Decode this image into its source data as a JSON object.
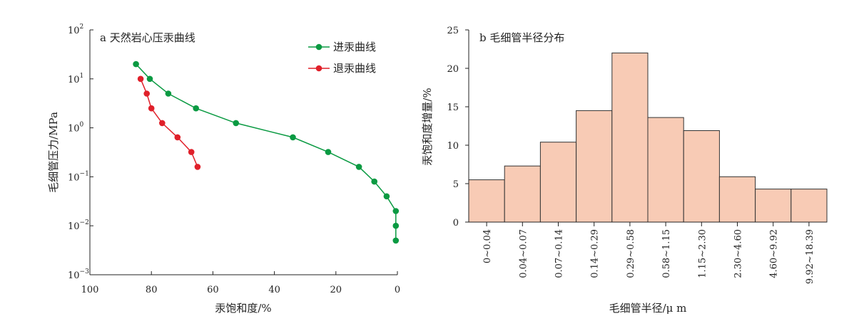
{
  "colors": {
    "intrusion": "#0a9a42",
    "withdrawal": "#e0202a",
    "bar_fill": "#f8cbb5",
    "bar_stroke": "#333333",
    "axis": "#222222"
  },
  "chart_data": [
    {
      "type": "line",
      "title": "a 天然岩心压汞曲线",
      "xlabel": "汞饱和度/%",
      "ylabel": "毛细管压力/MPa",
      "xlim": [
        100,
        0
      ],
      "x_reversed": true,
      "ylim": [
        0.001,
        100
      ],
      "y_scale": "log",
      "x_ticks": [
        100,
        80,
        60,
        40,
        20,
        0
      ],
      "y_ticks": [
        {
          "base": "10",
          "exp": "2",
          "value": 100
        },
        {
          "base": "10",
          "exp": "1",
          "value": 10
        },
        {
          "base": "10",
          "exp": "0",
          "value": 1
        },
        {
          "base": "10",
          "exp": "−1",
          "value": 0.1
        },
        {
          "base": "10",
          "exp": "−2",
          "value": 0.01
        },
        {
          "base": "10",
          "exp": "−3",
          "value": 0.001
        }
      ],
      "legend_position": "top-right",
      "series": [
        {
          "name": "进汞曲线",
          "color_key": "intrusion",
          "points": [
            [
              85,
              20
            ],
            [
              80.5,
              10
            ],
            [
              74.5,
              5
            ],
            [
              65.5,
              2.5
            ],
            [
              52.5,
              1.25
            ],
            [
              34,
              0.64
            ],
            [
              22.5,
              0.32
            ],
            [
              12.5,
              0.16
            ],
            [
              7.5,
              0.08
            ],
            [
              3.5,
              0.04
            ],
            [
              0.5,
              0.02
            ],
            [
              0.5,
              0.01
            ],
            [
              0.5,
              0.005
            ]
          ]
        },
        {
          "name": "退汞曲线",
          "color_key": "withdrawal",
          "points": [
            [
              83.5,
              10
            ],
            [
              81.5,
              5
            ],
            [
              80,
              2.5
            ],
            [
              76.5,
              1.25
            ],
            [
              71.5,
              0.64
            ],
            [
              67,
              0.32
            ],
            [
              65,
              0.16
            ]
          ]
        }
      ]
    },
    {
      "type": "bar",
      "title": "b 毛细管半径分布",
      "xlabel": "毛细管半径/μ m",
      "ylabel": "汞饱和度增量/%",
      "ylim": [
        0,
        25
      ],
      "y_ticks": [
        0,
        5,
        10,
        15,
        20,
        25
      ],
      "categories": [
        "0~0.04",
        "0.04~0.07",
        "0.07~0.14",
        "0.14~0.29",
        "0.29~0.58",
        "0.58~1.15",
        "1.15~2.30",
        "2.30~4.60",
        "4.60~9.92",
        "9.92~18.39"
      ],
      "values": [
        5.5,
        7.3,
        10.4,
        14.5,
        22.0,
        13.6,
        11.9,
        5.9,
        4.3,
        4.3
      ]
    }
  ]
}
